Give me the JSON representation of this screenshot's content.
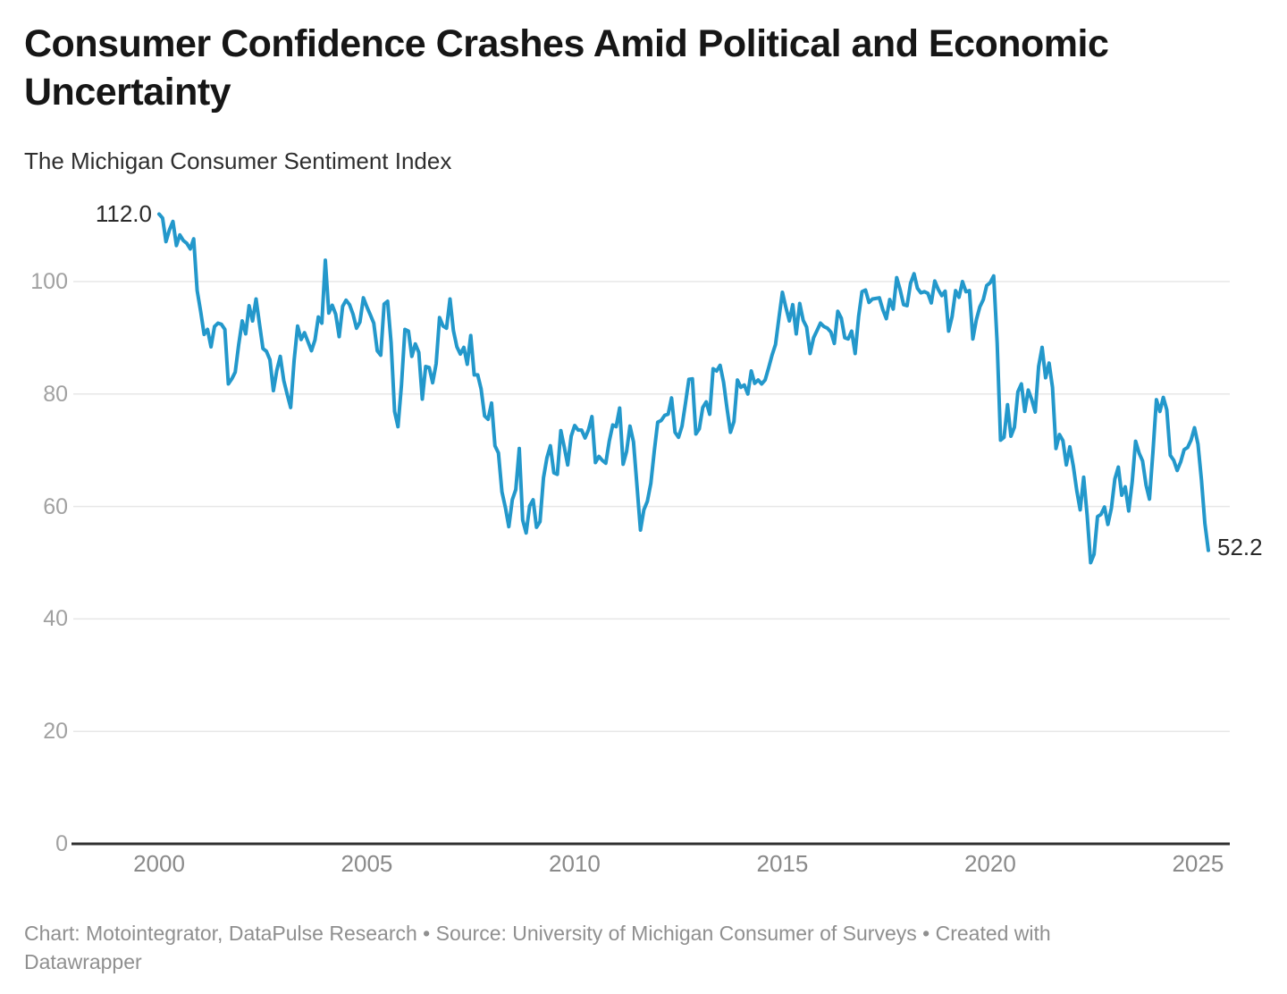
{
  "header": {
    "title": "Consumer Confidence Crashes Amid Political and Economic Uncertainty",
    "subtitle": "The Michigan Consumer Sentiment Index"
  },
  "footer": {
    "line1": "Chart: Motointegrator, DataPulse Research • Source: University of Michigan Consumer of Surveys • Created with",
    "line2": "Datawrapper"
  },
  "chart_data": {
    "type": "line",
    "title": "Consumer Confidence Crashes Amid Political and Economic Uncertainty",
    "subtitle": "The Michigan Consumer Sentiment Index",
    "series_name": "Michigan Consumer Sentiment Index",
    "frequency": "monthly",
    "start": "2000-01",
    "end": "2025-04",
    "start_label": "112.0",
    "end_label": "52.2",
    "line_color": "#2398cb",
    "grid_color": "#e7e7e7",
    "axis_color": "#303030",
    "ylim": [
      0,
      115
    ],
    "grid": true,
    "y_ticks": [
      0,
      20,
      40,
      60,
      80,
      100
    ],
    "x_ticks": [
      2000,
      2005,
      2010,
      2015,
      2020,
      2025
    ],
    "values": [
      112.0,
      111.3,
      107.1,
      109.2,
      110.7,
      106.4,
      108.3,
      107.3,
      106.8,
      105.8,
      107.6,
      98.4,
      94.7,
      90.6,
      91.5,
      88.4,
      92.0,
      92.6,
      92.4,
      91.5,
      81.8,
      82.7,
      83.9,
      88.8,
      93.0,
      90.7,
      95.7,
      93.0,
      96.9,
      92.4,
      88.1,
      87.6,
      86.1,
      80.6,
      84.2,
      86.7,
      82.4,
      79.9,
      77.6,
      86.0,
      92.1,
      89.7,
      90.9,
      89.3,
      87.7,
      89.6,
      93.7,
      92.6,
      103.8,
      94.4,
      95.8,
      94.2,
      90.2,
      95.6,
      96.7,
      95.9,
      94.2,
      91.7,
      92.8,
      97.1,
      95.5,
      94.1,
      92.6,
      87.7,
      86.9,
      96.0,
      96.5,
      89.1,
      76.9,
      74.2,
      81.6,
      91.5,
      91.2,
      86.7,
      88.9,
      87.4,
      79.1,
      84.9,
      84.7,
      82.0,
      85.4,
      93.6,
      92.1,
      91.7,
      96.9,
      91.3,
      88.4,
      87.1,
      88.3,
      85.3,
      90.4,
      83.4,
      83.4,
      80.9,
      76.1,
      75.5,
      78.4,
      70.8,
      69.5,
      62.6,
      59.8,
      56.4,
      61.2,
      63.0,
      70.3,
      57.6,
      55.3,
      60.1,
      61.2,
      56.3,
      57.3,
      65.1,
      68.7,
      70.8,
      66.0,
      65.7,
      73.5,
      70.6,
      67.4,
      72.5,
      74.4,
      73.6,
      73.6,
      72.2,
      73.6,
      76.0,
      67.8,
      68.9,
      68.2,
      67.7,
      71.6,
      74.5,
      74.2,
      77.5,
      67.5,
      69.8,
      74.3,
      71.5,
      63.7,
      55.8,
      59.4,
      60.9,
      64.1,
      69.9,
      75.0,
      75.3,
      76.2,
      76.4,
      79.3,
      73.2,
      72.3,
      74.3,
      78.3,
      82.6,
      82.7,
      72.9,
      73.8,
      77.6,
      78.6,
      76.4,
      84.5,
      84.1,
      85.1,
      82.1,
      77.5,
      73.2,
      75.1,
      82.5,
      81.2,
      81.6,
      80.0,
      84.1,
      81.9,
      82.5,
      81.8,
      82.5,
      84.6,
      86.9,
      88.8,
      93.6,
      98.1,
      95.4,
      93.0,
      95.9,
      90.7,
      96.1,
      93.1,
      91.9,
      87.2,
      90.0,
      91.3,
      92.6,
      92.0,
      91.7,
      91.0,
      89.0,
      94.7,
      93.5,
      90.0,
      89.8,
      91.2,
      87.2,
      93.8,
      98.2,
      98.5,
      96.3,
      96.9,
      97.0,
      97.1,
      95.0,
      93.4,
      96.8,
      95.1,
      100.7,
      98.5,
      95.9,
      95.7,
      99.7,
      101.4,
      98.8,
      98.0,
      98.2,
      97.9,
      96.2,
      100.1,
      98.6,
      97.5,
      98.3,
      91.2,
      93.8,
      98.4,
      97.2,
      100.0,
      98.2,
      98.4,
      89.8,
      93.2,
      95.5,
      96.8,
      99.3,
      99.8,
      101.0,
      89.1,
      71.8,
      72.3,
      78.1,
      72.5,
      74.1,
      80.4,
      81.8,
      76.9,
      80.7,
      79.0,
      76.8,
      84.9,
      88.3,
      82.9,
      85.5,
      81.2,
      70.3,
      72.8,
      71.7,
      67.4,
      70.6,
      67.2,
      62.8,
      59.4,
      65.2,
      58.4,
      50.0,
      51.5,
      58.2,
      58.6,
      59.9,
      56.8,
      59.7,
      64.9,
      67.0,
      62.0,
      63.5,
      59.2,
      64.4,
      71.6,
      69.5,
      68.1,
      63.8,
      61.3,
      69.7,
      79.0,
      76.9,
      79.4,
      77.2,
      69.1,
      68.2,
      66.4,
      67.9,
      70.1,
      70.5,
      71.8,
      74.0,
      71.1,
      64.7,
      57.0,
      52.2
    ]
  }
}
